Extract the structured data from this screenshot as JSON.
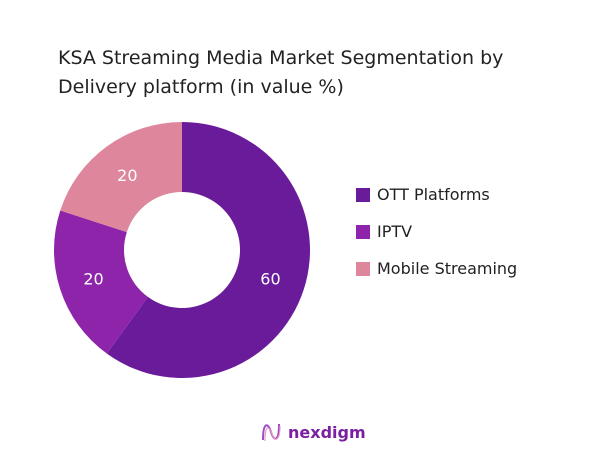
{
  "chart_data": {
    "type": "pie",
    "title": "KSA Streaming Media Market Segmentation by Delivery platform (in value %)",
    "categories": [
      "OTT Platforms",
      "IPTV",
      "Mobile Streaming"
    ],
    "values": [
      60,
      20,
      20
    ],
    "colors": [
      "#6a1b9a",
      "#8e24aa",
      "#de879c"
    ],
    "donut": true,
    "legend": "right"
  },
  "brand": {
    "name": "nexdigm"
  }
}
